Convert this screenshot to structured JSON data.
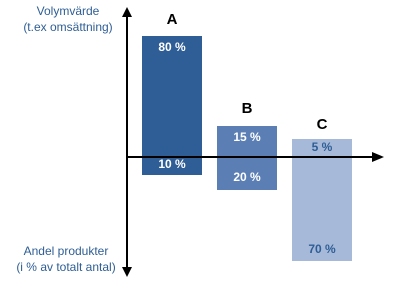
{
  "axis": {
    "top_label": [
      "Volymvärde",
      "(t.ex omsättning)"
    ],
    "bottom_label": [
      "Andel produkter",
      "(i % av totalt antal)"
    ]
  },
  "bars": [
    {
      "label": "A",
      "upper": "80 %",
      "lower": "10 %"
    },
    {
      "label": "B",
      "upper": "15 %",
      "lower": "20 %"
    },
    {
      "label": "C",
      "upper": "5 %",
      "lower": "70 %"
    }
  ]
}
